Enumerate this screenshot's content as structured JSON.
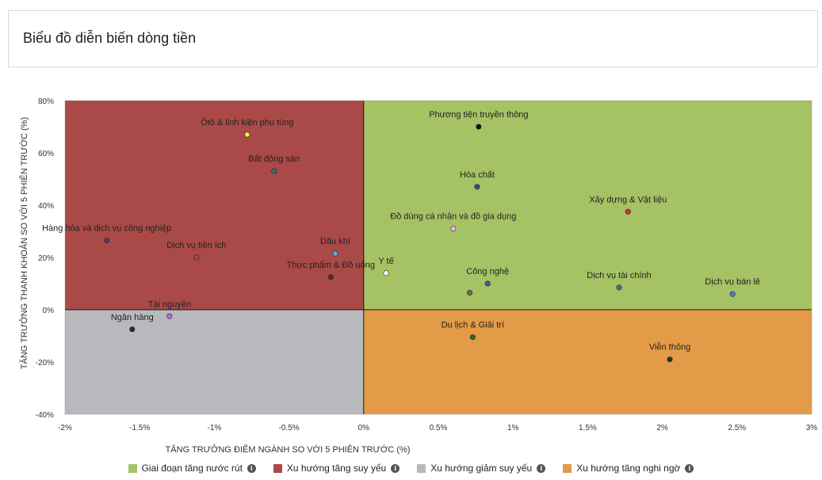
{
  "page": {
    "title": "Biểu đồ diễn biến dòng tiền"
  },
  "legend": [
    {
      "label": "Giai đoạn tăng nước rút",
      "color": "#a5c264"
    },
    {
      "label": "Xu hướng tăng suy yếu",
      "color": "#a94a48"
    },
    {
      "label": "Xu hướng giảm suy yếu",
      "color": "#b8b9bd"
    },
    {
      "label": "Xu hướng tăng nghi ngờ",
      "color": "#e39b47"
    }
  ],
  "chart_data": {
    "type": "scatter",
    "title": "",
    "xlabel": "TĂNG TRƯỞNG ĐIỂM NGÀNH SO VỚI 5 PHIÊN TRƯỚC (%)",
    "ylabel": "TĂNG TRƯỞNG THANH KHOẢN SO VỚI 5 PHIÊN TRƯỚC (%)",
    "xlim": [
      -2,
      3
    ],
    "ylim": [
      -40,
      80
    ],
    "x_ticks": [
      -2,
      -1.5,
      -1,
      -0.5,
      0,
      0.5,
      1,
      1.5,
      2,
      2.5,
      3
    ],
    "x_tick_labels": [
      "-2%",
      "-1.5%",
      "-1%",
      "-0.5%",
      "0%",
      "0.5%",
      "1%",
      "1.5%",
      "2%",
      "2.5%",
      "3%"
    ],
    "y_ticks": [
      -40,
      -20,
      0,
      20,
      40,
      60,
      80
    ],
    "y_tick_labels": [
      "-40%",
      "-20%",
      "0%",
      "20%",
      "40%",
      "60%",
      "80%"
    ],
    "quadrant_colors": {
      "top_right": "#a5c264",
      "top_left": "#a94a48",
      "bottom_left": "#b8b9bd",
      "bottom_right": "#e39b47"
    },
    "points": [
      {
        "name": "Ôtô & linh kiện phụ tùng",
        "x": -0.78,
        "y": 67,
        "color": "#f4f236",
        "label": "Ôtô & linh kiện phụ tùng"
      },
      {
        "name": "Bất động sản",
        "x": -0.6,
        "y": 53,
        "color": "#3c6b6b",
        "label": "Bất động sản"
      },
      {
        "name": "Hàng hóa và dịch vụ công nghiệp",
        "x": -1.72,
        "y": 26.5,
        "color": "#523b66",
        "label": "Hàng hóa và dịch vụ công nghiệp"
      },
      {
        "name": "Dịch vụ tiện ích",
        "x": -1.12,
        "y": 20,
        "color": "#a94a48",
        "label": "Dịch vụ tiện ích"
      },
      {
        "name": "Dầu khí",
        "x": -0.19,
        "y": 21.5,
        "color": "#4ab7e6",
        "label": "Dầu khí"
      },
      {
        "name": "Thực phẩm & Đồ uống",
        "x": -0.22,
        "y": 12.5,
        "color": "#5a2a26",
        "label": "Thực phẩm & Đồ uống"
      },
      {
        "name": "Tài nguyên",
        "x": -1.3,
        "y": -2.5,
        "color": "#b26ae8",
        "label": "Tài nguyên"
      },
      {
        "name": "Ngân hàng",
        "x": -1.55,
        "y": -7.5,
        "color": "#2b2b2b",
        "label": "Ngân hàng"
      },
      {
        "name": "Phương tiện truyền thông",
        "x": 0.77,
        "y": 70,
        "color": "#111111",
        "label": "Phương tiện truyền thông"
      },
      {
        "name": "Hóa chất",
        "x": 0.76,
        "y": 47,
        "color": "#3c4a8a",
        "label": "Hóa chất"
      },
      {
        "name": "Xây dựng & Vật liệu",
        "x": 1.77,
        "y": 37.5,
        "color": "#d9303c",
        "label": "Xây dựng & Vật liệu"
      },
      {
        "name": "Đồ dùng cá nhân và đồ gia dụng",
        "x": 0.6,
        "y": 31,
        "color": "#f8b6cf",
        "label": "Đồ dùng cá nhân và đồ gia dụng"
      },
      {
        "name": "Y tế",
        "x": 0.15,
        "y": 14,
        "color": "#ffffff",
        "label": "Y tế"
      },
      {
        "name": "Công nghệ",
        "x": 0.83,
        "y": 10,
        "color": "#4456b8",
        "label": "Công nghệ"
      },
      {
        "name": "Công nghệ (2)",
        "x": 0.71,
        "y": 6.5,
        "color": "#6a6a5a",
        "label": ""
      },
      {
        "name": "Dịch vụ tài chính",
        "x": 1.71,
        "y": 8.5,
        "color": "#5560b0",
        "label": "Dịch vụ tài chính"
      },
      {
        "name": "Dịch vụ bán lẻ",
        "x": 2.47,
        "y": 6,
        "color": "#4a7fc0",
        "label": "Dịch vụ bán lẻ"
      },
      {
        "name": "Du lịch & Giải trí",
        "x": 0.73,
        "y": -10.5,
        "color": "#2d6a2d",
        "label": "Du lịch & Giải trí"
      },
      {
        "name": "Viễn thông",
        "x": 2.05,
        "y": -19,
        "color": "#1f3b1f",
        "label": "Viễn thông"
      }
    ]
  }
}
